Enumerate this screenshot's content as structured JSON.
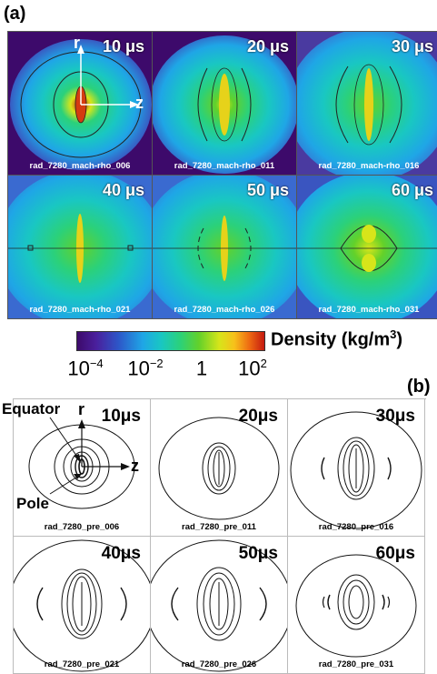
{
  "panel_a": {
    "label": "(a)",
    "axis_r": "r",
    "axis_z": "z",
    "tiles": [
      {
        "time": "10 μs",
        "caption": "rad_7280_mach-rho_006"
      },
      {
        "time": "20 μs",
        "caption": "rad_7280_mach-rho_011"
      },
      {
        "time": "30 μs",
        "caption": "rad_7280_mach-rho_016"
      },
      {
        "time": "40 μs",
        "caption": "rad_7280_mach-rho_021"
      },
      {
        "time": "50 μs",
        "caption": "rad_7280_mach-rho_026"
      },
      {
        "time": "60 μs",
        "caption": "rad_7280_mach-rho_031"
      }
    ]
  },
  "colorbar": {
    "title_main": "Density (kg/m",
    "title_exp": "3",
    "title_close": ")",
    "ticks": [
      {
        "base": "10",
        "exp": "−4"
      },
      {
        "base": "10",
        "exp": "−2"
      },
      {
        "base": "1",
        "exp": ""
      },
      {
        "base": "10",
        "exp": "2"
      }
    ],
    "colors": [
      "#3d0a6b",
      "#2d56c8",
      "#1fa6e6",
      "#2bd17a",
      "#d7e51a",
      "#ee6a12",
      "#c51a10"
    ]
  },
  "panel_b": {
    "label": "(b)",
    "annotation_equator": "Equator",
    "annotation_pole": "Pole",
    "axis_r": "r",
    "axis_z": "z",
    "tiles": [
      {
        "time": "10μs",
        "caption": "rad_7280_pre_006"
      },
      {
        "time": "20μs",
        "caption": "rad_7280_pre_011"
      },
      {
        "time": "30μs",
        "caption": "rad_7280_pre_016"
      },
      {
        "time": "40μs",
        "caption": "rad_7280_pre_021"
      },
      {
        "time": "50μs",
        "caption": "rad_7280_pre_026"
      },
      {
        "time": "60μs",
        "caption": "rad_7280_pre_031"
      }
    ]
  }
}
